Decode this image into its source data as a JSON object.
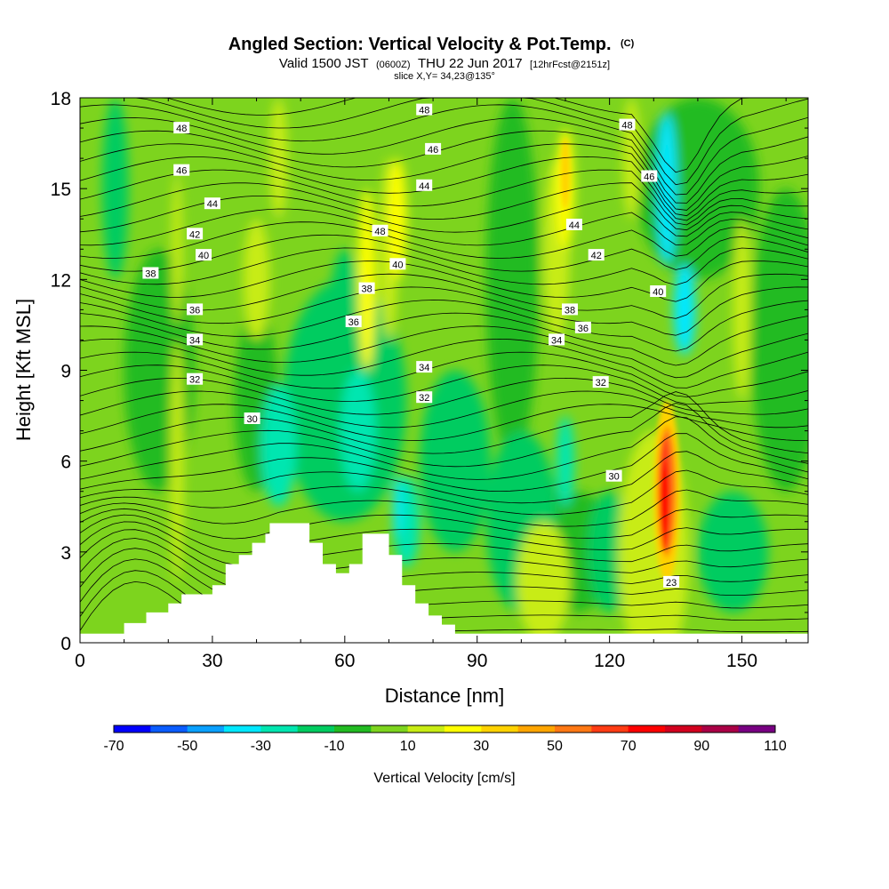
{
  "title": {
    "main": "Angled Section: Vertical Velocity & Pot.Temp.",
    "copyright": "(C)",
    "valid_prefix": "Valid 1500 JST",
    "valid_utc": "(0600Z)",
    "valid_date": "THU 22 Jun 2017",
    "forecast": "[12hrFcst@2151z]",
    "slice": "slice X,Y= 34,23@135°"
  },
  "chart_data": {
    "type": "heatmap",
    "xlabel": "Distance [nm]",
    "ylabel": "Height [Kft MSL]",
    "xlim": [
      0,
      165
    ],
    "ylim": [
      0,
      18
    ],
    "x_ticks": [
      0,
      30,
      60,
      90,
      120,
      150
    ],
    "y_ticks": [
      0,
      3,
      6,
      9,
      12,
      15,
      18
    ],
    "colorbar": {
      "title": "Vertical Velocity [cm/s]",
      "labels": [
        "-70",
        "-50",
        "-30",
        "-10",
        "10",
        "30",
        "50",
        "70",
        "90",
        "110"
      ],
      "label_values": [
        -70,
        -50,
        -30,
        -10,
        10,
        30,
        50,
        70,
        90,
        110
      ],
      "range": [
        -70,
        110
      ],
      "step": 10,
      "colors": [
        "#0000ff",
        "#0a5cff",
        "#0aa0ff",
        "#00e8ff",
        "#00e6b0",
        "#00cc60",
        "#22bb22",
        "#7dd41e",
        "#c8ec14",
        "#ffff00",
        "#ffd200",
        "#ffa500",
        "#ff7814",
        "#ff3c14",
        "#ff0000",
        "#d2001e",
        "#aa0046",
        "#780082"
      ]
    },
    "terrain_profile": [
      [
        0,
        0.3
      ],
      [
        10,
        0.3
      ],
      [
        10,
        0.65
      ],
      [
        15,
        0.65
      ],
      [
        15,
        1
      ],
      [
        20,
        1
      ],
      [
        20,
        1.3
      ],
      [
        23,
        1.3
      ],
      [
        23,
        1.6
      ],
      [
        30,
        1.6
      ],
      [
        30,
        1.9
      ],
      [
        33,
        1.9
      ],
      [
        33,
        2.6
      ],
      [
        36,
        2.6
      ],
      [
        36,
        2.9
      ],
      [
        39,
        2.9
      ],
      [
        39,
        3.3
      ],
      [
        42,
        3.3
      ],
      [
        42,
        3.6
      ],
      [
        43,
        3.6
      ],
      [
        43,
        3.95
      ],
      [
        52,
        3.95
      ],
      [
        52,
        3.3
      ],
      [
        55,
        3.3
      ],
      [
        55,
        2.6
      ],
      [
        58,
        2.6
      ],
      [
        58,
        2.3
      ],
      [
        61,
        2.3
      ],
      [
        61,
        2.6
      ],
      [
        64,
        2.6
      ],
      [
        64,
        3.6
      ],
      [
        70,
        3.6
      ],
      [
        70,
        2.9
      ],
      [
        73,
        2.9
      ],
      [
        73,
        1.9
      ],
      [
        76,
        1.9
      ],
      [
        76,
        1.3
      ],
      [
        79,
        1.3
      ],
      [
        79,
        0.9
      ],
      [
        82,
        0.9
      ],
      [
        82,
        0.6
      ],
      [
        85,
        0.6
      ],
      [
        85,
        0.3
      ],
      [
        165,
        0.3
      ]
    ],
    "theta_contours": [
      {
        "label": "23",
        "x": 134,
        "y": 2.0
      },
      {
        "label": "30",
        "x": 39,
        "y": 7.4
      },
      {
        "label": "30",
        "x": 121,
        "y": 5.5
      },
      {
        "label": "32",
        "x": 26,
        "y": 8.7
      },
      {
        "label": "32",
        "x": 78,
        "y": 8.1
      },
      {
        "label": "32",
        "x": 118,
        "y": 8.6
      },
      {
        "label": "34",
        "x": 26,
        "y": 10.0
      },
      {
        "label": "34",
        "x": 78,
        "y": 9.1
      },
      {
        "label": "34",
        "x": 108,
        "y": 10.0
      },
      {
        "label": "36",
        "x": 26,
        "y": 11.0
      },
      {
        "label": "36",
        "x": 62,
        "y": 10.6
      },
      {
        "label": "36",
        "x": 114,
        "y": 10.4
      },
      {
        "label": "38",
        "x": 16,
        "y": 12.2
      },
      {
        "label": "38",
        "x": 65,
        "y": 11.7
      },
      {
        "label": "38",
        "x": 111,
        "y": 11.0
      },
      {
        "label": "40",
        "x": 28,
        "y": 12.8
      },
      {
        "label": "40",
        "x": 72,
        "y": 12.5
      },
      {
        "label": "40",
        "x": 131,
        "y": 11.6
      },
      {
        "label": "42",
        "x": 26,
        "y": 13.5
      },
      {
        "label": "42",
        "x": 117,
        "y": 12.8
      },
      {
        "label": "44",
        "x": 30,
        "y": 14.5
      },
      {
        "label": "44",
        "x": 78,
        "y": 15.1
      },
      {
        "label": "44",
        "x": 112,
        "y": 13.8
      },
      {
        "label": "46",
        "x": 23,
        "y": 15.6
      },
      {
        "label": "46",
        "x": 80,
        "y": 16.3
      },
      {
        "label": "46",
        "x": 129,
        "y": 15.4
      },
      {
        "label": "48",
        "x": 23,
        "y": 17.0
      },
      {
        "label": "48",
        "x": 78,
        "y": 17.6
      },
      {
        "label": "48",
        "x": 124,
        "y": 17.1
      },
      {
        "label": "48",
        "x": 68,
        "y": 13.6
      }
    ]
  }
}
